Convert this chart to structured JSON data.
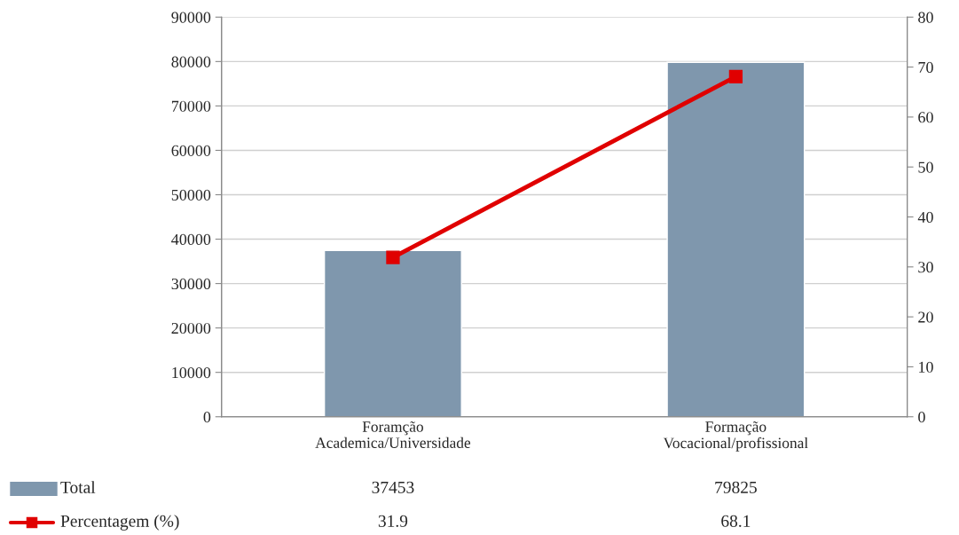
{
  "chart_data": {
    "type": "bar",
    "categories": [
      "Foramção\nAcademica/Universidade",
      "Formação\nVocacional/profissional"
    ],
    "series": [
      {
        "name": "Total",
        "color": "#7f97ad",
        "values": [
          37453,
          79825
        ]
      },
      {
        "name": "Percentagem (%)",
        "type": "line",
        "axis": "y2",
        "color": "#e00000",
        "marker": "square",
        "values": [
          31.9,
          68.1
        ]
      }
    ],
    "ylim": [
      0,
      90000
    ],
    "yticks": [
      0,
      10000,
      20000,
      30000,
      40000,
      50000,
      60000,
      70000,
      80000,
      90000
    ],
    "y2lim": [
      0,
      80
    ],
    "y2ticks": [
      0,
      10,
      20,
      30,
      40,
      50,
      60,
      70,
      80
    ],
    "grid": "y",
    "legend": "bottom",
    "data_labels": true
  }
}
